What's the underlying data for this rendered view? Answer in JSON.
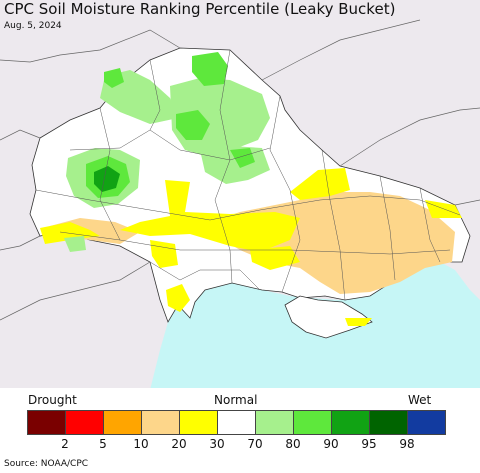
{
  "title": "CPC Soil Moisture Ranking Percentile (Leaky Bucket)",
  "date": "Aug. 5, 2024",
  "source": "Source: NOAA/CPC",
  "legend": {
    "left_label": "Drought",
    "mid_label": "Normal",
    "right_label": "Wet",
    "colors": [
      "#7a0000",
      "#ff0000",
      "#ffa500",
      "#fdd68a",
      "#ffff00",
      "#ffffff",
      "#a6f08d",
      "#5ee83c",
      "#11a314",
      "#006400",
      "#123ba0"
    ],
    "ticks": [
      "2",
      "5",
      "10",
      "20",
      "30",
      "70",
      "80",
      "90",
      "95",
      "98"
    ]
  },
  "colors": {
    "water": "#c6f6f6",
    "outside": "#ede9ee",
    "land": "#ffffff",
    "border": "#333333"
  }
}
